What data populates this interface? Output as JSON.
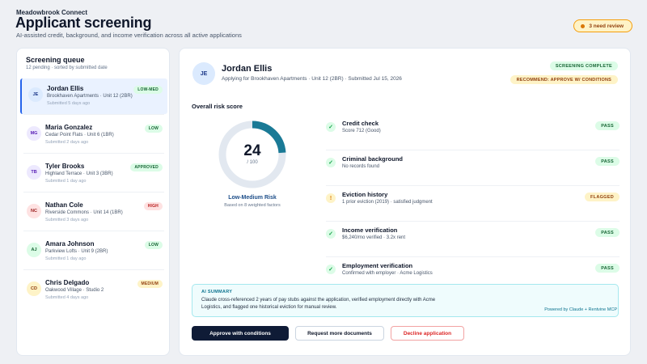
{
  "header": {
    "brand": "Meadowbrook Connect",
    "title": "Applicant screening",
    "subtitle": "AI-assisted credit, background, and income verification across all active applications",
    "review_count": "3 need review"
  },
  "queue": {
    "title": "Screening queue",
    "subtitle": "12 pending · sorted by submitted date",
    "items": [
      {
        "initials": "JE",
        "name": "Jordan Ellis",
        "property": "Brookhaven Apartments · Unit 12 (2BR)",
        "submitted": "Submitted 5 days ago",
        "badge": "LOW-MED"
      },
      {
        "initials": "MG",
        "name": "Maria Gonzalez",
        "property": "Cedar Point Flats · Unit 6 (1BR)",
        "submitted": "Submitted 2 days ago",
        "badge": "LOW"
      },
      {
        "initials": "TB",
        "name": "Tyler Brooks",
        "property": "Highland Terrace · Unit 3 (3BR)",
        "submitted": "Submitted 1 day ago",
        "badge": "APPROVED"
      },
      {
        "initials": "NC",
        "name": "Nathan Cole",
        "property": "Riverside Commons · Unit 14 (1BR)",
        "submitted": "Submitted 3 days ago",
        "badge": "HIGH"
      },
      {
        "initials": "AJ",
        "name": "Amara Johnson",
        "property": "Parkview Lofts · Unit 9 (2BR)",
        "submitted": "Submitted 1 day ago",
        "badge": "LOW"
      },
      {
        "initials": "CD",
        "name": "Chris Delgado",
        "property": "Oakwood Village · Studio 2",
        "submitted": "Submitted 4 days ago",
        "badge": "MEDIUM"
      }
    ]
  },
  "applicant": {
    "initials": "JE",
    "name": "Jordan Ellis",
    "detail": "Applying for Brookhaven Apartments · Unit 12 (2BR) · Submitted Jul 15, 2026",
    "status": "SCREENING COMPLETE",
    "recommendation": "RECOMMEND: APPROVE W/ CONDITIONS"
  },
  "risk": {
    "label": "Overall risk score",
    "score": "24",
    "max": "/ 100",
    "fraction": 0.24,
    "level": "Low-Medium Risk",
    "basis": "Based on 8 weighted factors"
  },
  "checks": [
    {
      "title": "Credit check",
      "detail": "Score 712 (Good)",
      "badge": "PASS",
      "icon": "check-icon"
    },
    {
      "title": "Criminal background",
      "detail": "No records found",
      "badge": "PASS",
      "icon": "check-icon"
    },
    {
      "title": "Eviction history",
      "detail": "1 prior eviction (2019) · satisfied judgment",
      "badge": "FLAGGED",
      "icon": "warning-icon"
    },
    {
      "title": "Income verification",
      "detail": "$6,240/mo verified · 3.2x rent",
      "badge": "PASS",
      "icon": "check-icon"
    },
    {
      "title": "Employment verification",
      "detail": "Confirmed with employer · Acme Logistics",
      "badge": "PASS",
      "icon": "check-icon"
    }
  ],
  "ai_summary": {
    "heading": "AI SUMMARY",
    "text": "Claude cross-referenced 2 years of pay stubs against the application, verified employment directly with Acme Logistics, and flagged one historical eviction for manual review.",
    "powered_by": "Powered by Claude + Rentvine MCP"
  },
  "actions": {
    "approve": "Approve with conditions",
    "request_docs": "Request more documents",
    "decline": "Decline application"
  },
  "colors": {
    "accent": "#1a7a96",
    "primary_button": "#0f1b36",
    "danger": "#dc2626"
  }
}
